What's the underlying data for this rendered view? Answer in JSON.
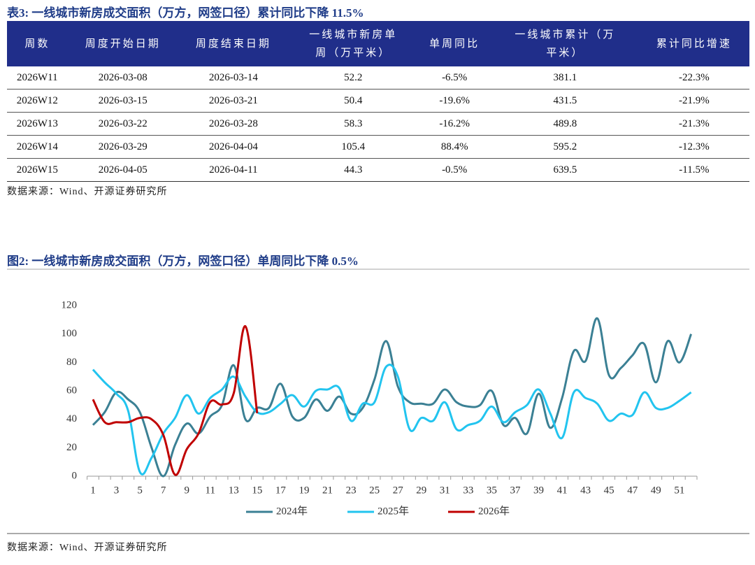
{
  "table_title": "表3:  一线城市新房成交面积（万方，网签口径）累计同比下降 11.5%",
  "table": {
    "header": [
      [
        "周数"
      ],
      [
        "周度开始日期"
      ],
      [
        "周度结束日期"
      ],
      [
        "一线城市新房单",
        "周（万平米）"
      ],
      [
        "单周同比"
      ],
      [
        "一线城市累计（万",
        "平米）"
      ],
      [
        "累计同比增速"
      ]
    ],
    "rows": [
      [
        "2026W11",
        "2026-03-08",
        "2026-03-14",
        "52.2",
        "-6.5%",
        "381.1",
        "-22.3%"
      ],
      [
        "2026W12",
        "2026-03-15",
        "2026-03-21",
        "50.4",
        "-19.6%",
        "431.5",
        "-21.9%"
      ],
      [
        "2026W13",
        "2026-03-22",
        "2026-03-28",
        "58.3",
        "-16.2%",
        "489.8",
        "-21.3%"
      ],
      [
        "2026W14",
        "2026-03-29",
        "2026-04-04",
        "105.4",
        "88.4%",
        "595.2",
        "-12.3%"
      ],
      [
        "2026W15",
        "2026-04-05",
        "2026-04-11",
        "44.3",
        "-0.5%",
        "639.5",
        "-11.5%"
      ]
    ]
  },
  "table_source": "数据来源：Wind、开源证券研究所",
  "chart_data": {
    "type": "line",
    "title": "图2:  一线城市新房成交面积（万方，网签口径）单周同比下降 0.5%",
    "categories": [
      1,
      null,
      3,
      null,
      5,
      null,
      7,
      null,
      9,
      null,
      11,
      null,
      13,
      null,
      15,
      null,
      17,
      null,
      19,
      null,
      21,
      null,
      23,
      null,
      25,
      null,
      27,
      null,
      29,
      null,
      31,
      null,
      33,
      null,
      35,
      null,
      37,
      null,
      39,
      null,
      41,
      null,
      43,
      null,
      45,
      null,
      47,
      null,
      49,
      null,
      51,
      null
    ],
    "series": [
      {
        "name": "2024年",
        "color": "#3b8094",
        "values": [
          36,
          45,
          59,
          54,
          45,
          20,
          0,
          22,
          37,
          30,
          42,
          50,
          78,
          40,
          48,
          48,
          65,
          42,
          41,
          54,
          46,
          56,
          44,
          48,
          68,
          95,
          63,
          52,
          51,
          51,
          61,
          52,
          49,
          50,
          60,
          36,
          41,
          30,
          58,
          34,
          55,
          88,
          81,
          111,
          71,
          76,
          85,
          93,
          66,
          95,
          80,
          100
        ]
      },
      {
        "name": "2025年",
        "color": "#22c4ef",
        "values": [
          75,
          66,
          58,
          46,
          3,
          13,
          30,
          41,
          57,
          44,
          55,
          61,
          70,
          56,
          45,
          45,
          51,
          57,
          49,
          60,
          61,
          62,
          39,
          51,
          52,
          77,
          70,
          33,
          41,
          39,
          52,
          33,
          36,
          39,
          49,
          38,
          45,
          50,
          61,
          44,
          27,
          59,
          55,
          51,
          39,
          44,
          43,
          59,
          48,
          48,
          53,
          59
        ]
      },
      {
        "name": "2026年",
        "color": "#c00000",
        "values": [
          54,
          38,
          38,
          38,
          41,
          40,
          29,
          1,
          19,
          30,
          52.2,
          50.4,
          58.3,
          105.4,
          44.3,
          null,
          null,
          null,
          null,
          null,
          null,
          null,
          null,
          null,
          null,
          null,
          null,
          null,
          null,
          null,
          null,
          null,
          null,
          null,
          null,
          null,
          null,
          null,
          null,
          null,
          null,
          null,
          null,
          null,
          null,
          null,
          null,
          null,
          null,
          null,
          null,
          null
        ]
      }
    ],
    "ylim": [
      0,
      120
    ],
    "yticks": [
      0,
      20,
      40,
      60,
      80,
      100,
      120
    ],
    "grid": false,
    "legend": "bottom"
  },
  "chart_source": "数据来源：Wind、开源证券研究所"
}
